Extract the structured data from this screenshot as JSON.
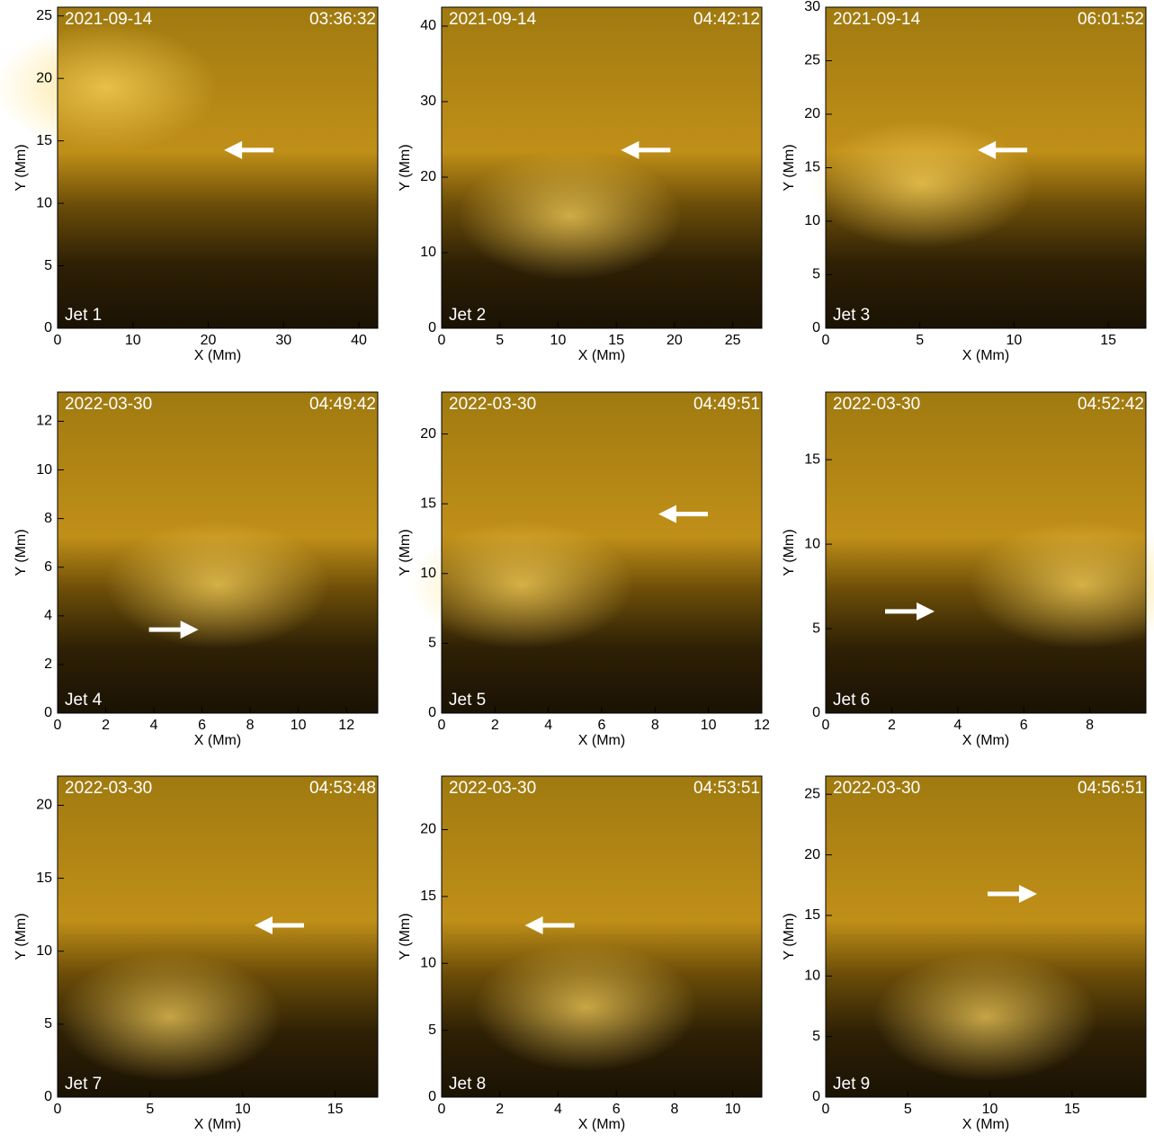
{
  "chart_data": [
    {
      "type": "image",
      "date": "2021-09-14",
      "time": "03:36:32",
      "label": "Jet 1",
      "xlabel": "X (Mm)",
      "ylabel": "Y (Mm)",
      "xlim": [
        0,
        42.5
      ],
      "ylim": [
        0,
        25.7
      ],
      "xticks": [
        0,
        10,
        20,
        30,
        40
      ],
      "yticks": [
        0,
        5,
        10,
        15,
        20,
        25
      ]
    },
    {
      "type": "image",
      "date": "2021-09-14",
      "time": "04:42:12",
      "label": "Jet 2",
      "xlabel": "X (Mm)",
      "ylabel": "Y (Mm)",
      "xlim": [
        0,
        27.5
      ],
      "ylim": [
        0,
        42.5
      ],
      "xticks": [
        0,
        5,
        10,
        15,
        20,
        25
      ],
      "yticks": [
        0,
        10,
        20,
        30,
        40
      ]
    },
    {
      "type": "image",
      "date": "2021-09-14",
      "time": "06:01:52",
      "label": "Jet 3",
      "xlabel": "X (Mm)",
      "ylabel": "Y (Mm)",
      "xlim": [
        0,
        17
      ],
      "ylim": [
        0,
        30
      ],
      "xticks": [
        0,
        5,
        10,
        15
      ],
      "yticks": [
        0,
        5,
        10,
        15,
        20,
        25,
        30
      ]
    },
    {
      "type": "image",
      "date": "2022-03-30",
      "time": "04:49:42",
      "label": "Jet 4",
      "xlabel": "X (Mm)",
      "ylabel": "Y (Mm)",
      "xlim": [
        0,
        13.3
      ],
      "ylim": [
        0,
        13.2
      ],
      "xticks": [
        0,
        2,
        4,
        6,
        8,
        10,
        12
      ],
      "yticks": [
        0,
        2,
        4,
        6,
        8,
        10,
        12
      ]
    },
    {
      "type": "image",
      "date": "2022-03-30",
      "time": "04:49:51",
      "label": "Jet 5",
      "xlabel": "X (Mm)",
      "ylabel": "Y (Mm)",
      "xlim": [
        0,
        12
      ],
      "ylim": [
        0,
        23
      ],
      "xticks": [
        0,
        2,
        4,
        6,
        8,
        10,
        12
      ],
      "yticks": [
        0,
        5,
        10,
        15,
        20
      ]
    },
    {
      "type": "image",
      "date": "2022-03-30",
      "time": "04:52:42",
      "label": "Jet 6",
      "xlabel": "X (Mm)",
      "ylabel": "Y (Mm)",
      "xlim": [
        0,
        9.7
      ],
      "ylim": [
        0,
        19
      ],
      "xticks": [
        0,
        2,
        4,
        6,
        8
      ],
      "yticks": [
        0,
        5,
        10,
        15
      ]
    },
    {
      "type": "image",
      "date": "2022-03-30",
      "time": "04:53:48",
      "label": "Jet 7",
      "xlabel": "X (Mm)",
      "ylabel": "Y (Mm)",
      "xlim": [
        0,
        17.3
      ],
      "ylim": [
        0,
        22
      ],
      "xticks": [
        0,
        5,
        10,
        15
      ],
      "yticks": [
        0,
        5,
        10,
        15,
        20
      ]
    },
    {
      "type": "image",
      "date": "2022-03-30",
      "time": "04:53:51",
      "label": "Jet 8",
      "xlabel": "X (Mm)",
      "ylabel": "Y (Mm)",
      "xlim": [
        0,
        11
      ],
      "ylim": [
        0,
        24
      ],
      "xticks": [
        0,
        2,
        4,
        6,
        8,
        10
      ],
      "yticks": [
        0,
        5,
        10,
        15,
        20
      ]
    },
    {
      "type": "image",
      "date": "2022-03-30",
      "time": "04:56:51",
      "label": "Jet 9",
      "xlabel": "X (Mm)",
      "ylabel": "Y (Mm)",
      "xlim": [
        0,
        19.5
      ],
      "ylim": [
        0,
        26.5
      ],
      "xticks": [
        0,
        5,
        10,
        15
      ],
      "yticks": [
        0,
        5,
        10,
        15,
        20,
        25
      ]
    }
  ]
}
